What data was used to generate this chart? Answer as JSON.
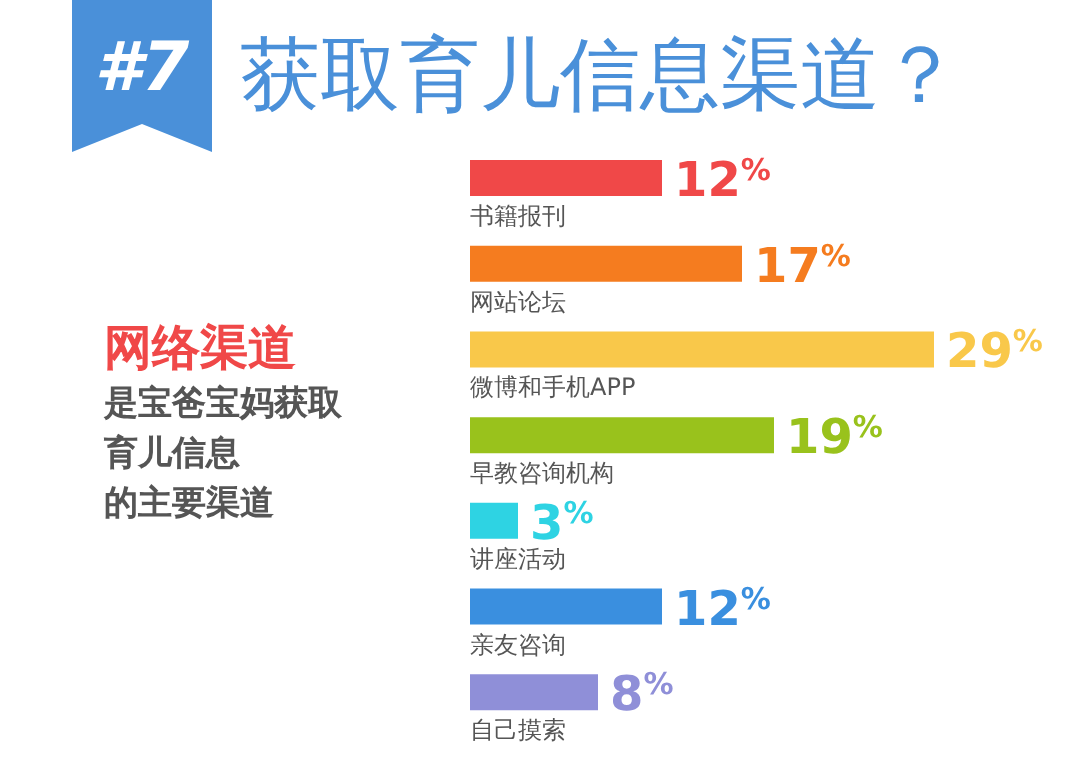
{
  "chart_data": {
    "type": "bar",
    "orientation": "horizontal",
    "title": "#7 获取育儿信息渠道？",
    "categories": [
      "书籍报刊",
      "网站论坛",
      "微博和手机APP",
      "早教咨询机构",
      "讲座活动",
      "亲友咨询",
      "自己摸索"
    ],
    "values": [
      12,
      17,
      29,
      19,
      3,
      12,
      8
    ],
    "value_labels": [
      "12%",
      "17%",
      "29%",
      "19%",
      "3%",
      "12%",
      "8%"
    ],
    "colors": [
      "#f04848",
      "#f57c1f",
      "#f9c84a",
      "#99c21c",
      "#2ed3e3",
      "#3a8fdf",
      "#8f8fd8"
    ],
    "annotations": [
      "网络渠道",
      "是宝爸宝妈获取",
      "育儿信息",
      "的主要渠道"
    ],
    "grid": false,
    "legend": false
  }
}
